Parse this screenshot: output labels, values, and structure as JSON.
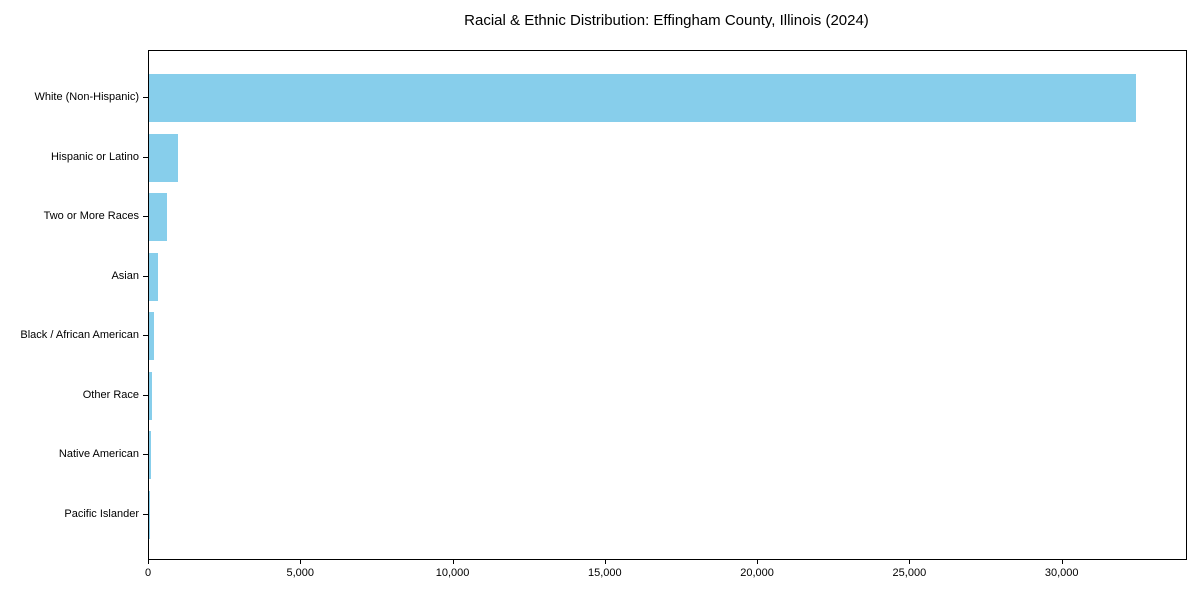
{
  "chart_data": {
    "type": "bar",
    "orientation": "horizontal",
    "title": "Racial & Ethnic Distribution: Effingham County, Illinois (2024)",
    "xlabel": "",
    "ylabel": "",
    "categories": [
      "White (Non-Hispanic)",
      "Hispanic or Latino",
      "Two or More Races",
      "Asian",
      "Black / African American",
      "Other Race",
      "Native American",
      "Pacific Islander"
    ],
    "values": [
      32400,
      940,
      580,
      310,
      155,
      90,
      50,
      15
    ],
    "xlim": [
      0,
      34050
    ],
    "x_ticks": [
      0,
      5000,
      10000,
      15000,
      20000,
      25000,
      30000
    ],
    "x_tick_labels": [
      "0",
      "5,000",
      "10,000",
      "15,000",
      "20,000",
      "25,000",
      "30,000"
    ],
    "bar_color": "#87CEEB",
    "axis_color": "#000000",
    "background_color": "#FFFFFF",
    "grid": false,
    "legend": false
  }
}
